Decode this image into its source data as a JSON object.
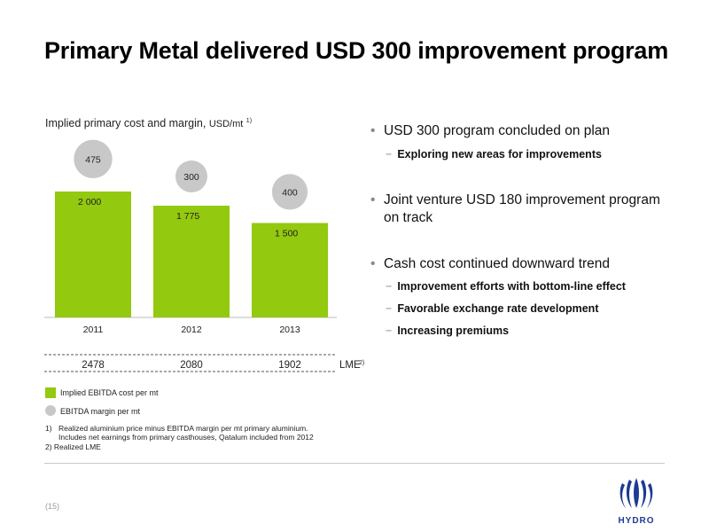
{
  "slide": {
    "title": "Primary Metal delivered USD 300 improvement program",
    "page_number": "(15)"
  },
  "chart_data": {
    "type": "bar",
    "title": "Implied primary cost and margin,",
    "title_unit": "USD/mt",
    "title_footnote": "1)",
    "categories": [
      "2011",
      "2012",
      "2013"
    ],
    "series": [
      {
        "name": "Implied EBITDA cost per mt",
        "values": [
          2000,
          1775,
          1500
        ],
        "labels": [
          "2 000",
          "1 775",
          "1 500"
        ],
        "color": "#93c90e"
      },
      {
        "name": "EBITDA margin per mt",
        "values": [
          475,
          300,
          400
        ],
        "labels": [
          "475",
          "300",
          "400"
        ],
        "color": "#c8c8c8"
      }
    ],
    "lme": {
      "values": [
        "2478",
        "2080",
        "1902"
      ],
      "label": "LME",
      "footnote": "2)"
    },
    "ylim": [
      0,
      3000
    ],
    "legend": "bottom-left"
  },
  "footnotes": {
    "f1_num": "1)",
    "f1_line1": "Realized aluminium price minus EBITDA margin per mt primary aluminium.",
    "f1_line2": "Includes net earnings from primary casthouses, Qatalum included from 2012",
    "f2": "2)  Realized LME"
  },
  "bullets": [
    {
      "text": "USD 300 program concluded on plan",
      "subs": [
        "Exploring new areas for improvements"
      ]
    },
    {
      "text": "Joint venture USD 180 improvement program on track",
      "subs": []
    },
    {
      "text": "Cash cost continued downward trend",
      "subs": [
        "Improvement efforts with bottom-line effect",
        "Favorable exchange rate development",
        "Increasing premiums"
      ]
    }
  ],
  "logo": {
    "text": "HYDRO",
    "color": "#1f3a93"
  }
}
